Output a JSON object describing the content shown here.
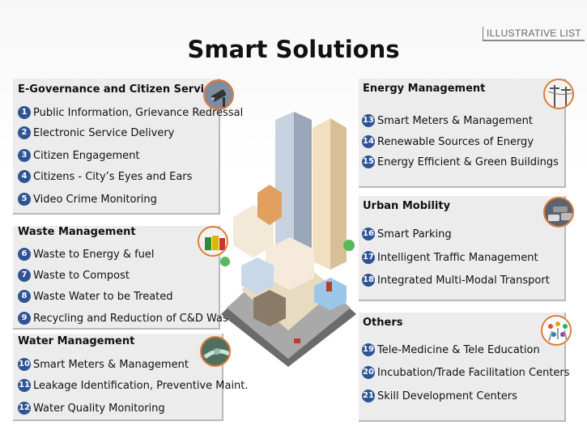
{
  "tag": "ILLUSTRATIVE  LIST",
  "title": "Smart Solutions",
  "egov": {
    "title": "E-Governance and Citizen Services",
    "items": [
      {
        "num": "1",
        "label": "Public Information, Grievance Redressal"
      },
      {
        "num": "2",
        "label": "Electronic Service Delivery"
      },
      {
        "num": "3",
        "label": "Citizen Engagement"
      },
      {
        "num": "4",
        "label": "Citizens - City’s Eyes and Ears"
      },
      {
        "num": "5",
        "label": "Video Crime Monitoring"
      }
    ]
  },
  "waste": {
    "title": "Waste Management",
    "items": [
      {
        "num": "6",
        "label": "Waste to Energy & fuel"
      },
      {
        "num": "7",
        "label": "Waste to Compost"
      },
      {
        "num": "8",
        "label": "Waste Water to be Treated"
      },
      {
        "num": "9",
        "label": "Recycling and Reduction of C&D Waste"
      }
    ]
  },
  "water": {
    "title": "Water Management",
    "items": [
      {
        "num": "10",
        "label": "Smart Meters & Management"
      },
      {
        "num": "11",
        "label": "Leakage Identification, Preventive Maint."
      },
      {
        "num": "12",
        "label": "Water Quality Monitoring"
      }
    ]
  },
  "energy": {
    "title": "Energy Management",
    "items": [
      {
        "num": "13",
        "label": "Smart Meters & Management"
      },
      {
        "num": "14",
        "label": "Renewable Sources of Energy"
      },
      {
        "num": "15",
        "label": "Energy Efficient & Green Buildings"
      }
    ]
  },
  "mobility": {
    "title": "Urban Mobility",
    "items": [
      {
        "num": "16",
        "label": "Smart Parking"
      },
      {
        "num": "17",
        "label": "Intelligent Traffic Management"
      },
      {
        "num": "18",
        "label": "Integrated Multi-Modal Transport"
      }
    ]
  },
  "others": {
    "title": "Others",
    "items": [
      {
        "num": "19",
        "label": "Tele-Medicine & Tele Education"
      },
      {
        "num": "20",
        "label": "Incubation/Trade Facilitation Centers"
      },
      {
        "num": "21",
        "label": "Skill Development Centers"
      }
    ]
  },
  "colors": {
    "badge": "#2f5496",
    "accent": "#e07b39",
    "panel": "#ececec"
  },
  "icons": [
    "cctv-camera-icon",
    "recycle-bins-icon",
    "water-pipe-icon",
    "power-tower-icon",
    "traffic-cars-icon",
    "people-circle-icon",
    "isometric-city-illustration"
  ]
}
